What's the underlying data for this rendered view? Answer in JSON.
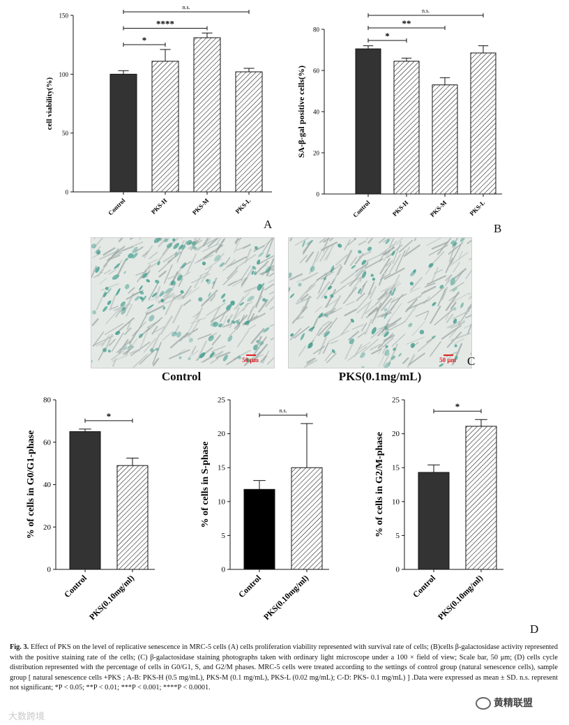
{
  "chart_data": [
    {
      "id": "A",
      "type": "bar",
      "ylabel": "cell viability(%)",
      "ylim": [
        0,
        150
      ],
      "yticks": [
        0,
        50,
        100,
        150
      ],
      "categories": [
        "Control",
        "PKS-H",
        "PKS-M",
        "PKS-L"
      ],
      "values": [
        100,
        111,
        131,
        102
      ],
      "errors": [
        3,
        10,
        4,
        3
      ],
      "fills": [
        "solid",
        "hatch",
        "hatch",
        "hatch"
      ],
      "significance": [
        {
          "from": 0,
          "to": 1,
          "label": "*"
        },
        {
          "from": 0,
          "to": 2,
          "label": "****"
        },
        {
          "from": 0,
          "to": 3,
          "label": "n.s."
        }
      ]
    },
    {
      "id": "B",
      "type": "bar",
      "ylabel": "SA-β-gal positive cells(%)",
      "ylim": [
        0,
        80
      ],
      "yticks": [
        0,
        20,
        40,
        60,
        80
      ],
      "categories": [
        "Control",
        "PKS-H",
        "PKS-M",
        "PKS-L"
      ],
      "values": [
        70.5,
        64.5,
        53,
        68.5
      ],
      "errors": [
        1.5,
        1.5,
        3.5,
        3.5
      ],
      "fills": [
        "solid",
        "hatch",
        "hatch",
        "hatch"
      ],
      "significance": [
        {
          "from": 0,
          "to": 1,
          "label": "*"
        },
        {
          "from": 0,
          "to": 2,
          "label": "**"
        },
        {
          "from": 0,
          "to": 3,
          "label": "n.s."
        }
      ]
    },
    {
      "id": "D1",
      "type": "bar",
      "ylabel": "% of cells in G0/G1-phase",
      "ylim": [
        0,
        80
      ],
      "yticks": [
        0,
        20,
        40,
        60,
        80
      ],
      "categories": [
        "Control",
        "PKS(0.10mg/ml)"
      ],
      "values": [
        65,
        49
      ],
      "errors": [
        1.2,
        3.5
      ],
      "fills": [
        "solid",
        "hatch"
      ],
      "significance": [
        {
          "from": 0,
          "to": 1,
          "label": "*"
        }
      ]
    },
    {
      "id": "D2",
      "type": "bar",
      "ylabel": "% of cells in S-phase",
      "ylim": [
        0,
        25
      ],
      "yticks": [
        0,
        5,
        10,
        15,
        20,
        25
      ],
      "categories": [
        "Control",
        "PKS(0.10mg/ml)"
      ],
      "values": [
        11.8,
        15
      ],
      "errors": [
        1.3,
        6.5
      ],
      "fills": [
        "black",
        "hatch"
      ],
      "significance": [
        {
          "from": 0,
          "to": 1,
          "label": "n.s."
        }
      ]
    },
    {
      "id": "D3",
      "type": "bar",
      "ylabel": "% of cells in G2/M-phase",
      "ylim": [
        0,
        25
      ],
      "yticks": [
        0,
        5,
        10,
        15,
        20,
        25
      ],
      "categories": [
        "Control",
        "PKS(0.10mg/ml)"
      ],
      "values": [
        14.3,
        21.1
      ],
      "errors": [
        1.1,
        1.0
      ],
      "fills": [
        "solid",
        "hatch"
      ],
      "significance": [
        {
          "from": 0,
          "to": 1,
          "label": "*"
        }
      ]
    }
  ],
  "panel_labels": {
    "a": "A",
    "b": "B",
    "c": "C",
    "d": "D"
  },
  "photos": {
    "left_caption": "Control",
    "right_caption": "PKS(0.1mg/mL)",
    "scale_text": "50 μm",
    "scale_text_left": "50 μm",
    "background_color": "#e4e9e6",
    "stain_color": "#3f9c8c"
  },
  "colors": {
    "solid_bar": "#333333",
    "black_bar": "#000000",
    "hatch": "#222222",
    "axis": "#111111"
  },
  "caption": {
    "fig_label": "Fig. 3.",
    "text": "Effect of PKS on the level of replicative senescence in MRC-5 cells (A) cells proliferation viability represented with survival rate of cells; (B)cells β-galactosidase activity represented with the positive staining rate of the cells; (C) β-galactosidase staining photographs taken with ordinary light microscope under a 100 × field of view; Scale bar, 50 μm; (D) cells cycle distribution represented with the percentage of cells in G0/G1, S, and G2/M phases. MRC-5 cells were treated according to the settings of control group (natural senescence cells), sample group [ natural senescence cells +PKS ; A-B: PKS-H (0.5 mg/mL), PKS-M (0.1 mg/mL), PKS-L (0.02 mg/mL); C-D: PKS- 0.1 mg/mL) ] .Data were expressed as mean ± SD. n.s. represent not significant; *P < 0.05; **P < 0.01; ***P < 0.001; ****P < 0.0001."
  },
  "watermarks": {
    "left": "大数跨境",
    "right": "黄精联盟"
  }
}
